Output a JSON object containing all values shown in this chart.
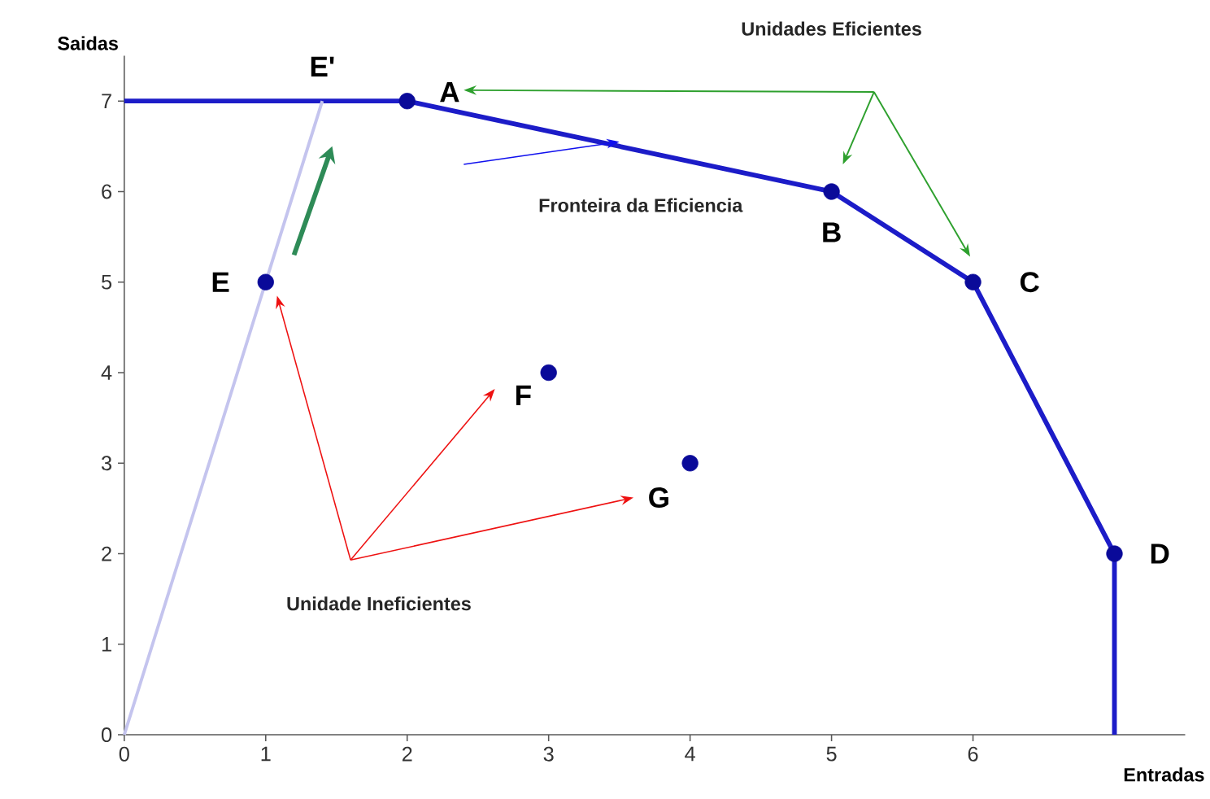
{
  "chart_data": {
    "type": "scatter",
    "xlabel": "Entradas",
    "ylabel": "Saidas",
    "xlim": [
      0,
      7.5
    ],
    "ylim": [
      0,
      7.5
    ],
    "xticks": [
      0,
      1,
      2,
      3,
      4,
      5,
      6
    ],
    "yticks": [
      0,
      1,
      2,
      3,
      4,
      5,
      6,
      7
    ],
    "grid": false,
    "series": [
      {
        "type": "line",
        "color": "#1c1cc8",
        "x": [
          0,
          2,
          5,
          6,
          7,
          7
        ],
        "values": [
          7,
          7,
          6,
          5,
          2,
          0
        ],
        "marker": "none"
      },
      {
        "type": "line",
        "color": "#c4c4ee",
        "x": [
          0,
          1.4
        ],
        "values": [
          0,
          7
        ],
        "marker": "none"
      },
      {
        "color": "#0a0a99",
        "x": [
          2,
          5,
          6,
          7,
          1,
          3,
          4
        ],
        "values": [
          7,
          6,
          5,
          2,
          5,
          4,
          3
        ],
        "marker": "circle"
      }
    ],
    "annotations": [
      {
        "text": "A",
        "x": 2,
        "y": 7
      },
      {
        "text": "B",
        "x": 5,
        "y": 6
      },
      {
        "text": "C",
        "x": 6,
        "y": 5
      },
      {
        "text": "D",
        "x": 7,
        "y": 2
      },
      {
        "text": "E",
        "x": 1,
        "y": 5
      },
      {
        "text": "F",
        "x": 3,
        "y": 4
      },
      {
        "text": "G",
        "x": 4,
        "y": 3
      },
      {
        "text": "E'",
        "x": 1.4,
        "y": 7
      },
      "Unidades Eficientes",
      "Fronteira da Eficiencia",
      "Unidade Ineficientes"
    ]
  }
}
